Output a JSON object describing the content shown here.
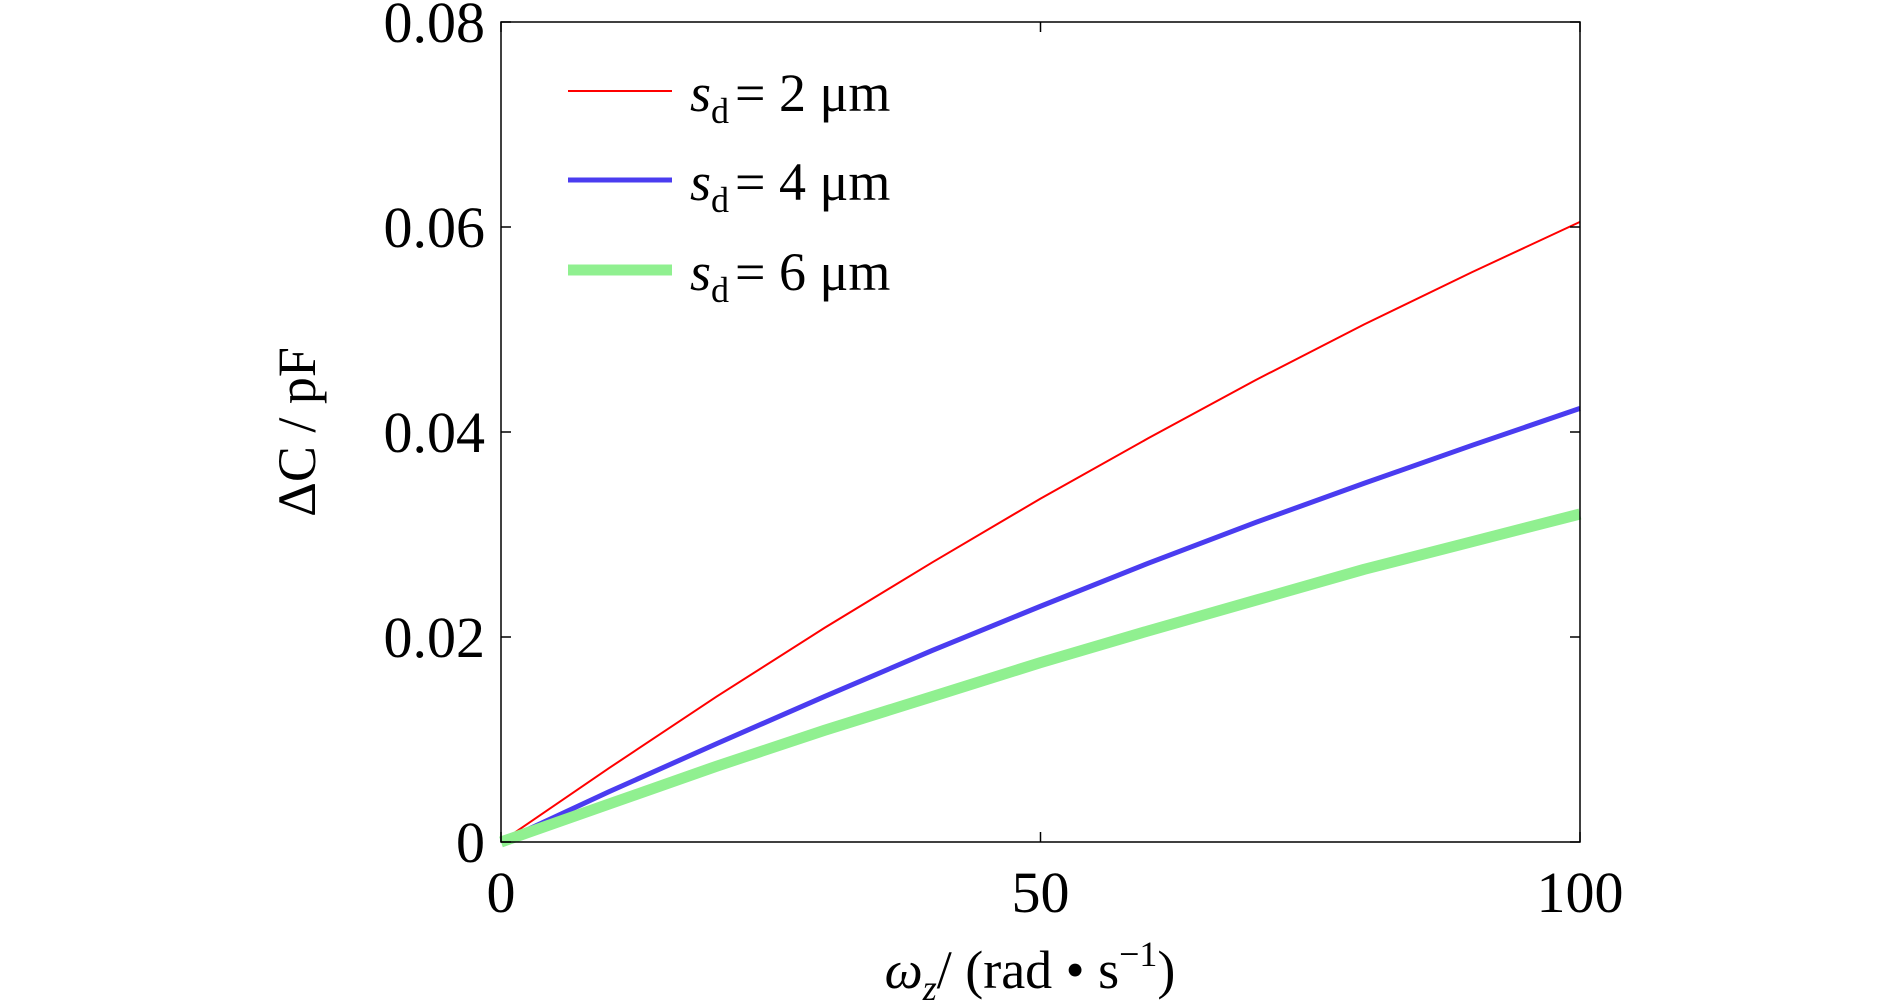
{
  "chart_data": {
    "type": "line",
    "title": "",
    "xlabel": {
      "symbol": "ω",
      "subscript": "z",
      "unit": "/ (rad • s",
      "sup": "−1",
      "close": ")"
    },
    "ylabel": "ΔC / pF",
    "xlim": [
      0,
      100
    ],
    "ylim": [
      0,
      0.08
    ],
    "xticks": [
      0,
      50,
      100
    ],
    "xtick_labels": [
      "0",
      "50",
      "100"
    ],
    "yticks": [
      0,
      0.02,
      0.04,
      0.06,
      0.08
    ],
    "ytick_labels": [
      "0",
      "0.02",
      "0.04",
      "0.06",
      "0.08"
    ],
    "grid": false,
    "legend_position": "top-left",
    "x": [
      0,
      10,
      20,
      30,
      40,
      50,
      60,
      70,
      80,
      90,
      100
    ],
    "series": [
      {
        "name": "s_d = 2 μm",
        "label_var": "s",
        "label_sub": "d",
        "label_rest": "= 2 μm",
        "color": "#ff0000",
        "values": [
          0,
          0.0072,
          0.0142,
          0.0209,
          0.0273,
          0.0335,
          0.0394,
          0.0451,
          0.0505,
          0.0556,
          0.0605
        ]
      },
      {
        "name": "s_d = 4 μm",
        "label_var": "s",
        "label_sub": "d",
        "label_rest": "= 4 μm",
        "color": "#4a3cf0",
        "values": [
          0,
          0.0049,
          0.0096,
          0.0142,
          0.0187,
          0.023,
          0.0272,
          0.0312,
          0.035,
          0.0387,
          0.0423
        ]
      },
      {
        "name": "s_d = 6 μm",
        "label_var": "s",
        "label_sub": "d",
        "label_rest": "= 6 μm",
        "color": "#90f090",
        "values": [
          0,
          0.0037,
          0.0074,
          0.0109,
          0.0142,
          0.0175,
          0.0206,
          0.0236,
          0.0266,
          0.0293,
          0.032
        ]
      }
    ]
  }
}
